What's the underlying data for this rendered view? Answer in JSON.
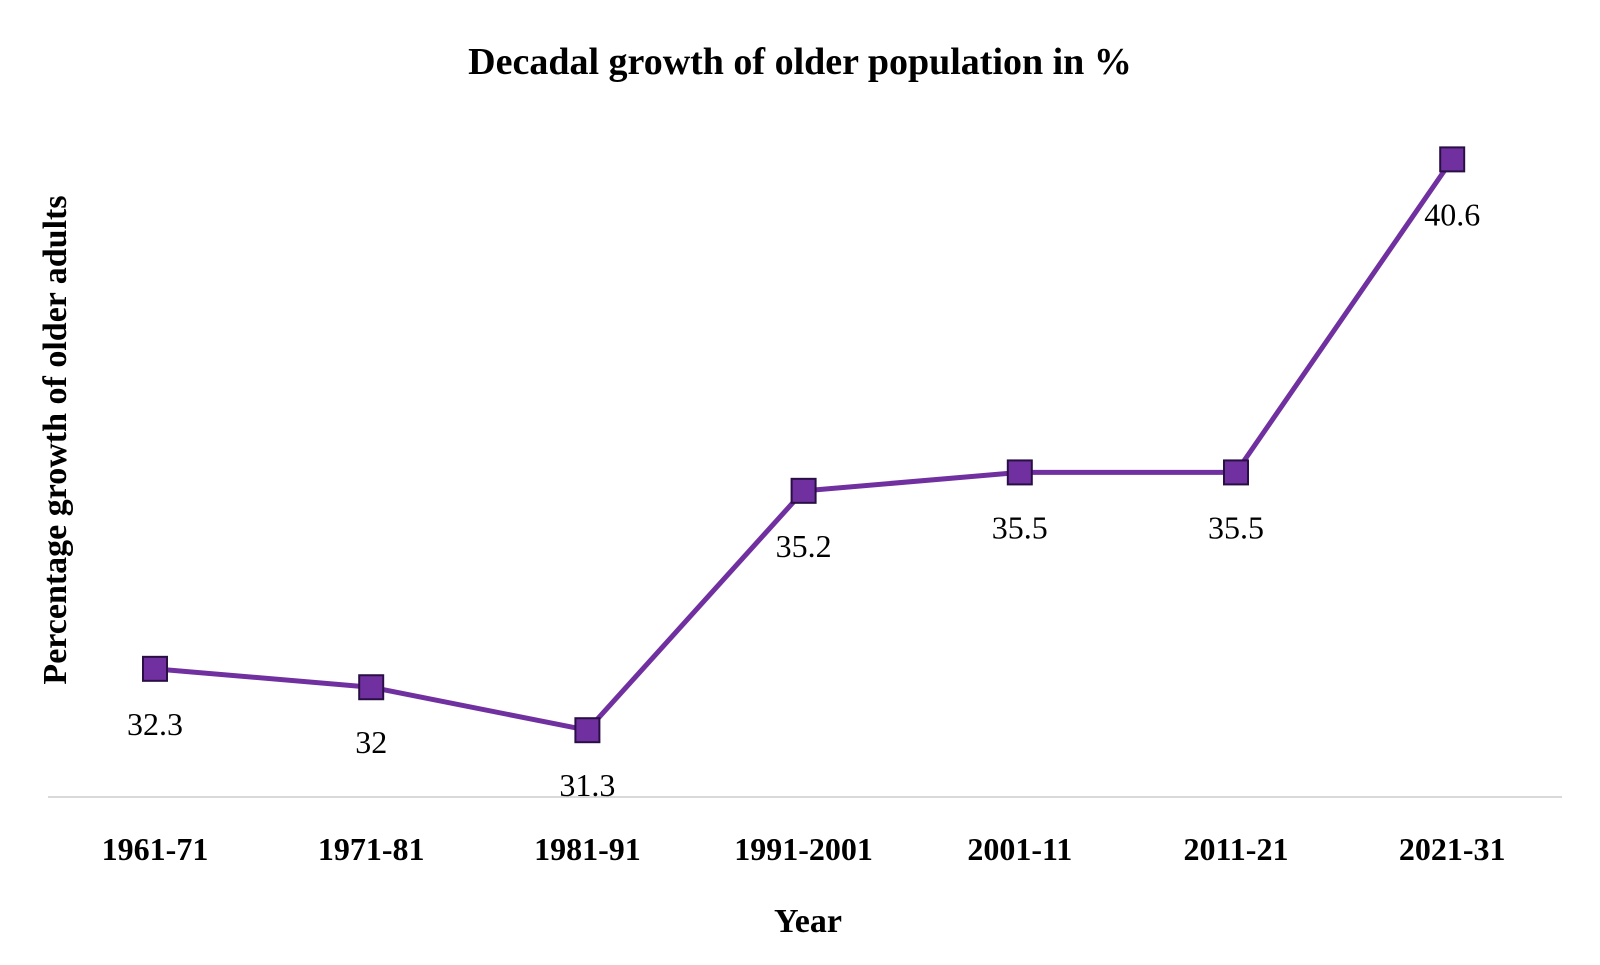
{
  "chart_data": {
    "type": "line",
    "title": "Decadal growth of older population in %",
    "xlabel": "Year",
    "ylabel": "Percentage growth of older adults",
    "categories": [
      "1961-71",
      "1971-81",
      "1981-91",
      "1991-2001",
      "2001-11",
      "2011-21",
      "2021-31"
    ],
    "series": [
      {
        "values": [
          32.3,
          32,
          31.3,
          35.2,
          35.5,
          35.5,
          40.6
        ],
        "data_labels": [
          "32.3",
          "32",
          "31.3",
          "35.2",
          "35.5",
          "35.5",
          "40.6"
        ],
        "color": "#7030A0",
        "marker": "square"
      }
    ],
    "ylim": [
      30,
      41.6
    ],
    "grid": false,
    "legend": "none",
    "axis_line_color": "#D9D9D9"
  }
}
